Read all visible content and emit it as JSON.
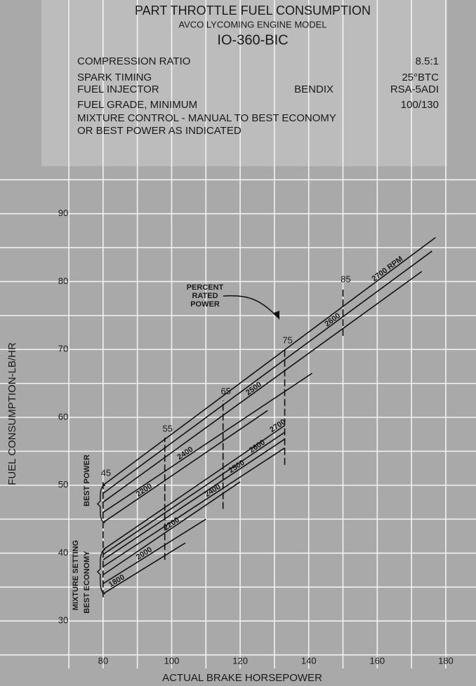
{
  "chart_data": {
    "type": "line",
    "title": "PART THROTTLE FUEL CONSUMPTION",
    "subtitle": "AVCO LYCOMING ENGINE MODEL",
    "model": "IO-360-BIC",
    "specs": [
      {
        "label": "COMPRESSION RATIO",
        "value": "8.5:1"
      },
      {
        "label": "SPARK TIMING",
        "value": "25°BTC"
      },
      {
        "label": "FUEL INJECTOR",
        "maker": "BENDIX",
        "value": "RSA-5ADI"
      },
      {
        "label": "FUEL GRADE, MINIMUM",
        "value": "100/130"
      }
    ],
    "mixture_note": [
      "MIXTURE CONTROL - MANUAL TO BEST ECONOMY",
      "OR BEST POWER AS INDICATED"
    ],
    "xlabel": "ACTUAL BRAKE HORSEPOWER",
    "ylabel": "FUEL CONSUMPTION-LB/HR",
    "xlim": [
      62,
      188
    ],
    "ylim": [
      23,
      97
    ],
    "xticks": [
      80,
      100,
      120,
      140,
      160,
      180
    ],
    "yticks": [
      30,
      40,
      50,
      60,
      70,
      80,
      90
    ],
    "xgrid": [
      70,
      80,
      90,
      100,
      110,
      120,
      130,
      140,
      150,
      160,
      170,
      180
    ],
    "ygrid": [
      25,
      30,
      35,
      40,
      45,
      50,
      55,
      60,
      65,
      70,
      75,
      80,
      85,
      90,
      95
    ],
    "grid": true,
    "annotations": {
      "percent_rated_power": [
        "PERCENT",
        "RATED",
        "POWER"
      ],
      "mixture_setting": "MIXTURE SETTING",
      "best_power": "BEST POWER",
      "best_economy": "BEST ECONOMY"
    },
    "power_lines": [
      {
        "label": "45",
        "x": 80,
        "values": [
          33.5,
          50.5
        ]
      },
      {
        "label": "55",
        "x": 98,
        "values": [
          39,
          57
        ]
      },
      {
        "label": "65",
        "x": 115,
        "values": [
          46.5,
          62.5
        ]
      },
      {
        "label": "75",
        "x": 133,
        "values": [
          53,
          70
        ]
      },
      {
        "label": "85",
        "x": 150,
        "values": [
          72,
          79
        ]
      }
    ],
    "series": [
      {
        "name": "2700 RPM",
        "color": "#111111",
        "x": [
          80,
          177
        ],
        "values": [
          50,
          86.5
        ]
      },
      {
        "name": "2600",
        "color": "#111111",
        "x": [
          80,
          176
        ],
        "values": [
          48.8,
          84.5
        ]
      },
      {
        "name": "2500",
        "color": "#111111",
        "x": [
          80,
          173
        ],
        "values": [
          47.5,
          81.5
        ]
      },
      {
        "name": "2400",
        "color": "#111111",
        "x": [
          80,
          141
        ],
        "values": [
          46,
          66.5
        ]
      },
      {
        "name": "2200",
        "color": "#111111",
        "x": [
          80,
          128
        ],
        "values": [
          44.5,
          61
        ]
      },
      {
        "name": "2700",
        "color": "#111111",
        "x": [
          80,
          133
        ],
        "values": [
          40.5,
          58.8
        ]
      },
      {
        "name": "2600",
        "color": "#111111",
        "x": [
          80,
          133
        ],
        "values": [
          39.8,
          57.8
        ]
      },
      {
        "name": "2500",
        "color": "#111111",
        "x": [
          80,
          133
        ],
        "values": [
          39,
          56.8
        ]
      },
      {
        "name": "2400",
        "color": "#111111",
        "x": [
          80,
          133
        ],
        "values": [
          38,
          55.5
        ]
      },
      {
        "name": "2200",
        "color": "#111111",
        "x": [
          80,
          120
        ],
        "values": [
          36.8,
          50.5
        ]
      },
      {
        "name": "2000",
        "color": "#111111",
        "x": [
          80,
          110
        ],
        "values": [
          35.5,
          45
        ]
      },
      {
        "name": "1800",
        "color": "#111111",
        "x": [
          80,
          104
        ],
        "values": [
          34,
          41.5
        ]
      }
    ]
  }
}
